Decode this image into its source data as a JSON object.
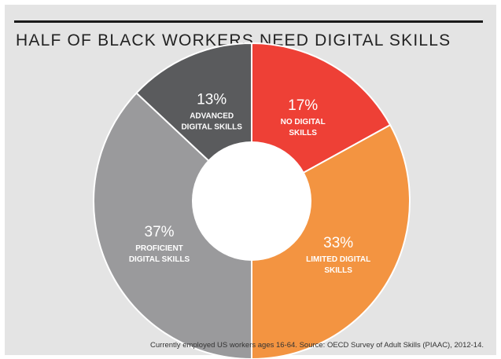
{
  "colors": {
    "background": "#e4e4e4",
    "no_digital": "#ee4036",
    "limited": "#f39441",
    "proficient": "#9a9a9c",
    "advanced": "#5a5b5d",
    "hole": "#ffffff",
    "divider": "#ffffff"
  },
  "title": "HALF OF BLACK WORKERS NEED DIGITAL SKILLS",
  "source": "Currently employed US workers ages 16-64. Source: OECD Survey of Adult Skills (PIAAC), 2012-14.",
  "chart_data": {
    "type": "pie",
    "variant": "donut",
    "title": "HALF OF BLACK WORKERS NEED DIGITAL SKILLS",
    "unit": "%",
    "slices": [
      {
        "label": "NO DIGITAL SKILLS",
        "value": 17,
        "display": "17%",
        "label_lines": [
          "NO DIGITAL",
          "SKILLS"
        ],
        "color": "#ee4036"
      },
      {
        "label": "LIMITED DIGITAL SKILLS",
        "value": 33,
        "display": "33%",
        "label_lines": [
          "LIMITED DIGITAL",
          "SKILLS"
        ],
        "color": "#f39441"
      },
      {
        "label": "PROFICIENT DIGITAL SKILLS",
        "value": 37,
        "display": "37%",
        "label_lines": [
          "PROFICIENT",
          "DIGITAL SKILLS"
        ],
        "color": "#9a9a9c"
      },
      {
        "label": "ADVANCED DIGITAL SKILLS",
        "value": 13,
        "display": "13%",
        "label_lines": [
          "ADVANCED",
          "DIGITAL SKILLS"
        ],
        "color": "#5a5b5d"
      }
    ],
    "start": "12 o'clock, clockwise",
    "legend": "none (labels on slices)",
    "note": "Currently employed US workers ages 16-64. Source: OECD Survey of Adult Skills (PIAAC), 2012-14."
  }
}
